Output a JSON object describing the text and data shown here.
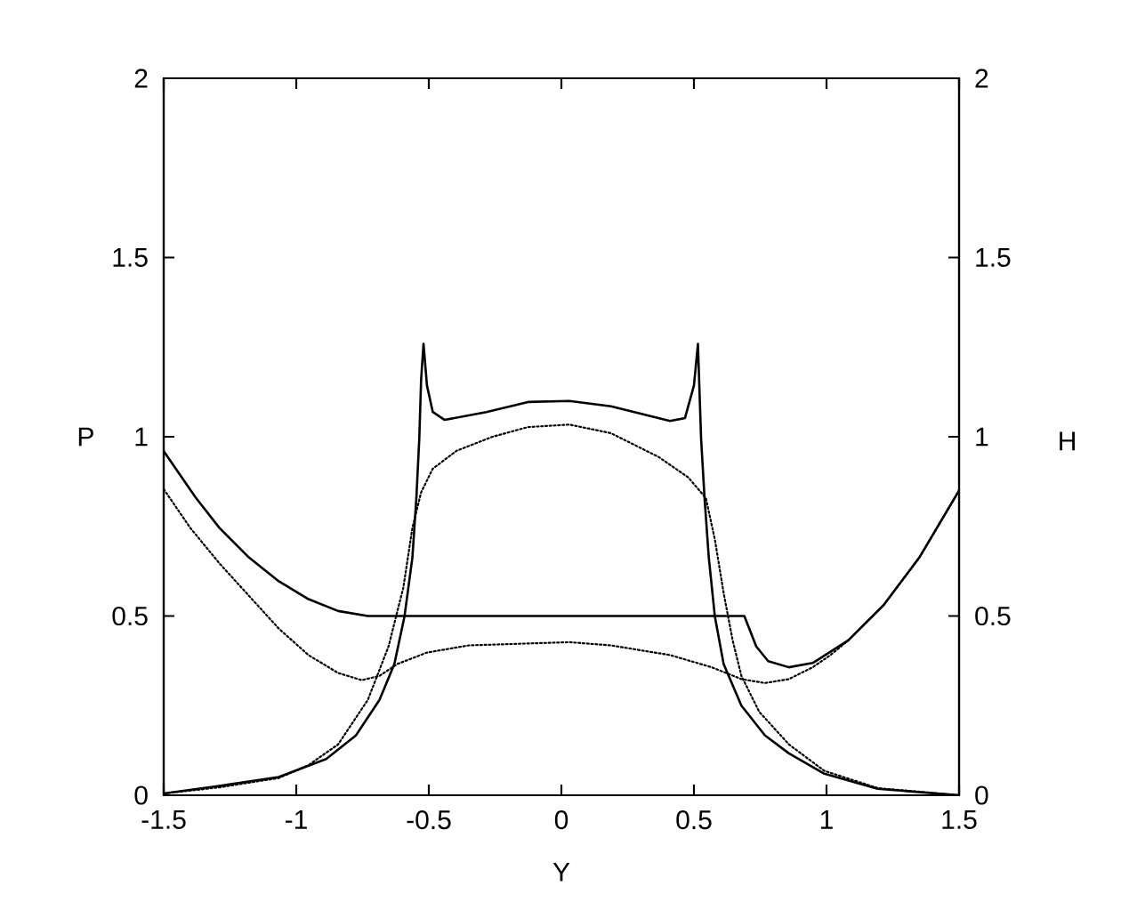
{
  "chart_data": {
    "type": "line",
    "xlabel": "Y",
    "ylabel": "P",
    "y2label": "H",
    "xlim": [
      -1.5,
      1.5
    ],
    "xticks": [
      -1.5,
      -1,
      -0.5,
      0,
      0.5,
      1,
      1.5
    ],
    "ylim": [
      0,
      2
    ],
    "yticks": [
      0,
      0.5,
      1,
      1.5,
      2
    ],
    "y2lim": [
      0,
      2
    ],
    "y2ticks": [
      0,
      0.5,
      1,
      1.5,
      2
    ],
    "marker": "none",
    "series": [
      {
        "color": "#000000",
        "line_style": "solid",
        "x": [
          -1.5,
          -1.29,
          -1.066,
          -0.887,
          -0.775,
          -0.686,
          -0.63,
          -0.592,
          -0.562,
          -0.547,
          -0.536,
          -0.529,
          -0.52,
          -0.507,
          -0.485,
          -0.44,
          -0.283,
          -0.126,
          0.03,
          0.187,
          0.41,
          0.466,
          0.5,
          0.515,
          0.527,
          0.54,
          0.556,
          0.579,
          0.612,
          0.679,
          0.768,
          0.858,
          0.992,
          1.193,
          1.5
        ],
        "values": [
          0.005,
          0.026,
          0.051,
          0.101,
          0.167,
          0.266,
          0.366,
          0.498,
          0.663,
          0.829,
          0.994,
          1.16,
          1.259,
          1.143,
          1.069,
          1.047,
          1.069,
          1.097,
          1.1,
          1.085,
          1.044,
          1.052,
          1.143,
          1.259,
          0.994,
          0.829,
          0.663,
          0.498,
          0.366,
          0.25,
          0.167,
          0.117,
          0.06,
          0.018,
          0.0
        ]
      },
      {
        "color": "#000000",
        "line_style": "dotted",
        "x": [
          -1.5,
          -1.29,
          -1.066,
          -0.954,
          -0.842,
          -0.73,
          -0.652,
          -0.596,
          -0.562,
          -0.529,
          -0.485,
          -0.395,
          -0.26,
          -0.126,
          0.03,
          0.187,
          0.366,
          0.478,
          0.545,
          0.579,
          0.612,
          0.646,
          0.679,
          0.746,
          0.858,
          0.992,
          1.193,
          1.5
        ],
        "values": [
          0.005,
          0.022,
          0.048,
          0.084,
          0.142,
          0.266,
          0.415,
          0.58,
          0.746,
          0.845,
          0.911,
          0.961,
          1.0,
          1.027,
          1.034,
          1.01,
          0.944,
          0.887,
          0.829,
          0.713,
          0.564,
          0.432,
          0.333,
          0.233,
          0.142,
          0.068,
          0.02,
          0.0
        ]
      },
      {
        "color": "#000000",
        "line_style": "solid",
        "axis": "y2",
        "x": [
          -1.5,
          -1.379,
          -1.29,
          -1.178,
          -1.066,
          -0.954,
          -0.842,
          -0.73,
          0,
          0.69,
          0.735,
          0.78,
          0.858,
          0.948,
          1.082,
          1.216,
          1.35,
          1.5
        ],
        "values": [
          0.96,
          0.83,
          0.746,
          0.663,
          0.597,
          0.547,
          0.514,
          0.5,
          0.5,
          0.5,
          0.415,
          0.374,
          0.357,
          0.369,
          0.432,
          0.531,
          0.663,
          0.85
        ]
      },
      {
        "color": "#000000",
        "line_style": "dotted",
        "axis": "y2",
        "x": [
          -1.5,
          -1.4,
          -1.29,
          -1.178,
          -1.066,
          -0.954,
          -0.842,
          -0.753,
          -0.686,
          -0.619,
          -0.507,
          -0.35,
          0.03,
          0.187,
          0.41,
          0.567,
          0.679,
          0.768,
          0.858,
          0.948,
          1.015,
          1.082,
          1.216,
          1.35,
          1.5
        ],
        "values": [
          0.854,
          0.746,
          0.647,
          0.556,
          0.465,
          0.391,
          0.341,
          0.321,
          0.333,
          0.366,
          0.398,
          0.418,
          0.427,
          0.418,
          0.391,
          0.357,
          0.324,
          0.313,
          0.324,
          0.357,
          0.391,
          0.432,
          0.531,
          0.663,
          0.85
        ]
      }
    ]
  }
}
